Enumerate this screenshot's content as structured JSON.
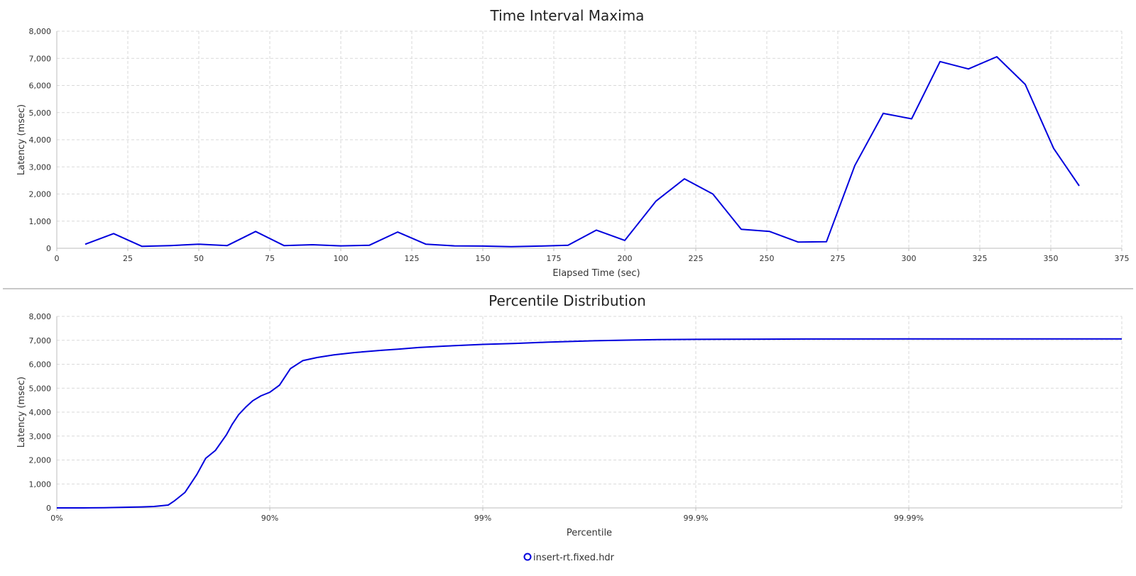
{
  "colors": {
    "series": "#0000dd",
    "grid": "#d9d9d9",
    "axis": "#bdbdbd"
  },
  "legend": {
    "label": "insert-rt.fixed.hdr",
    "icon": "circle-marker-icon"
  },
  "chart_data": [
    {
      "type": "line",
      "title": "Time Interval Maxima",
      "xlabel": "Elapsed Time (sec)",
      "ylabel": "Latency (msec)",
      "xlim": [
        0,
        375
      ],
      "ylim": [
        0,
        8000
      ],
      "xticks": [
        0,
        25,
        50,
        75,
        100,
        125,
        150,
        175,
        200,
        225,
        250,
        275,
        300,
        325,
        350,
        375
      ],
      "xtick_labels": [
        "0",
        "25",
        "50",
        "75",
        "100",
        "125",
        "150",
        "175",
        "200",
        "225",
        "250",
        "275",
        "300",
        "325",
        "350",
        "375"
      ],
      "yticks": [
        0,
        1000,
        2000,
        3000,
        4000,
        5000,
        6000,
        7000,
        8000
      ],
      "ytick_labels": [
        "0",
        "1,000",
        "2,000",
        "3,000",
        "4,000",
        "5,000",
        "6,000",
        "7,000",
        "8,000"
      ],
      "grid": true,
      "series": [
        {
          "name": "insert-rt.fixed.hdr",
          "x": [
            10,
            20,
            30,
            40,
            50,
            60,
            70,
            80,
            90,
            100,
            110,
            120,
            130,
            140,
            150,
            160,
            170,
            180,
            190,
            200,
            211,
            221,
            231,
            241,
            251,
            261,
            271,
            281,
            291,
            301,
            311,
            321,
            331,
            341,
            351,
            360
          ],
          "y": [
            150,
            540,
            70,
            100,
            150,
            100,
            620,
            100,
            130,
            90,
            110,
            600,
            150,
            90,
            80,
            60,
            80,
            110,
            670,
            290,
            1740,
            2560,
            2000,
            700,
            620,
            230,
            240,
            3050,
            4970,
            4770,
            6880,
            6610,
            7060,
            6040,
            3680,
            2300
          ]
        }
      ]
    },
    {
      "type": "line",
      "title": "Percentile Distribution",
      "xlabel": "Percentile",
      "ylabel": "Latency (msec)",
      "x_scale": "log-inverse-percentile",
      "xlim": [
        0,
        99.999
      ],
      "ylim": [
        0,
        8000
      ],
      "xticks": [
        0,
        90,
        99,
        99.9,
        99.99
      ],
      "xtick_labels": [
        "0%",
        "90%",
        "99%",
        "99.9%",
        "99.99%"
      ],
      "yticks": [
        0,
        1000,
        2000,
        3000,
        4000,
        5000,
        6000,
        7000,
        8000
      ],
      "ytick_labels": [
        "0",
        "1,000",
        "2,000",
        "3,000",
        "4,000",
        "5,000",
        "6,000",
        "7,000",
        "8,000"
      ],
      "grid": true,
      "series": [
        {
          "name": "insert-rt.fixed.hdr",
          "x": [
            0,
            25,
            40,
            50,
            60,
            65,
            70,
            72,
            75,
            78,
            80,
            82,
            84,
            85,
            86,
            87,
            88,
            89,
            90,
            91,
            92,
            93,
            94,
            95,
            96,
            97,
            97.5,
            98,
            98.5,
            99,
            99.3,
            99.5,
            99.7,
            99.8,
            99.85,
            99.9,
            99.95,
            99.97,
            99.99,
            99.995,
            99.999
          ],
          "y": [
            0,
            0,
            10,
            20,
            40,
            60,
            120,
            300,
            650,
            1400,
            2070,
            2400,
            3050,
            3500,
            3900,
            4200,
            4480,
            4680,
            4830,
            5130,
            5820,
            6150,
            6280,
            6390,
            6490,
            6580,
            6630,
            6700,
            6760,
            6830,
            6870,
            6920,
            6980,
            7010,
            7030,
            7040,
            7050,
            7055,
            7060,
            7060,
            7060
          ]
        }
      ]
    }
  ]
}
